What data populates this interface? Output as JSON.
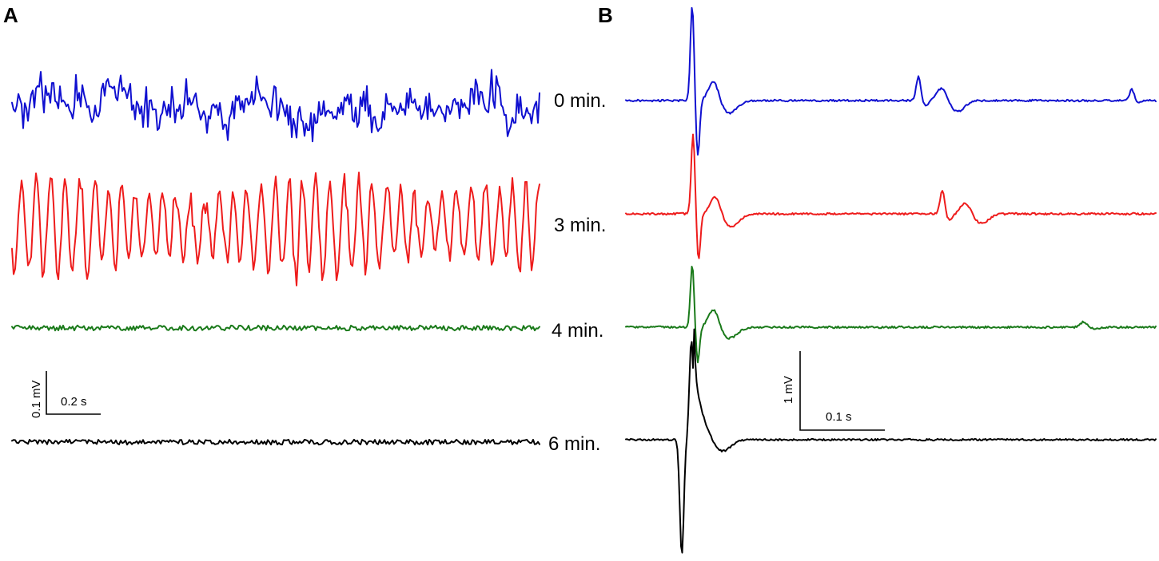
{
  "panels": {
    "a": {
      "letter": "A"
    },
    "b": {
      "letter": "B"
    }
  },
  "chart_data": [
    {
      "type": "line",
      "panel": "A",
      "title": "",
      "xlabel": "",
      "ylabel": "",
      "grid": false,
      "scale_bar": {
        "x_label": "0.2 s",
        "y_label": "0.1 mV"
      },
      "series": [
        {
          "label": "0 min.",
          "color": "#1010d0",
          "activity": "high-amplitude irregular oscillations"
        },
        {
          "label": "3 min.",
          "color": "#ee1c1c",
          "activity": "high-amplitude fast oscillations"
        },
        {
          "label": "4 min.",
          "color": "#1a7a1a",
          "activity": "flat"
        },
        {
          "label": "6 min.",
          "color": "#000000",
          "activity": "flat"
        }
      ]
    },
    {
      "type": "line",
      "panel": "B",
      "title": "",
      "xlabel": "",
      "ylabel": "",
      "grid": false,
      "scale_bar": {
        "x_label": "0.1 s",
        "y_label": "1 mV"
      },
      "series": [
        {
          "label": "0 min.",
          "color": "#1010d0",
          "response": "stimulus artifact, evoked potential, second evoked wave"
        },
        {
          "label": "3 min.",
          "color": "#ee1c1c",
          "response": "stimulus artifact, evoked potential, second evoked wave"
        },
        {
          "label": "4 min.",
          "color": "#1a7a1a",
          "response": "stimulus artifact, evoked potential, small late wave"
        },
        {
          "label": "6 min.",
          "color": "#000000",
          "response": "large biphasic artifact, slow evoked wave"
        }
      ]
    }
  ]
}
